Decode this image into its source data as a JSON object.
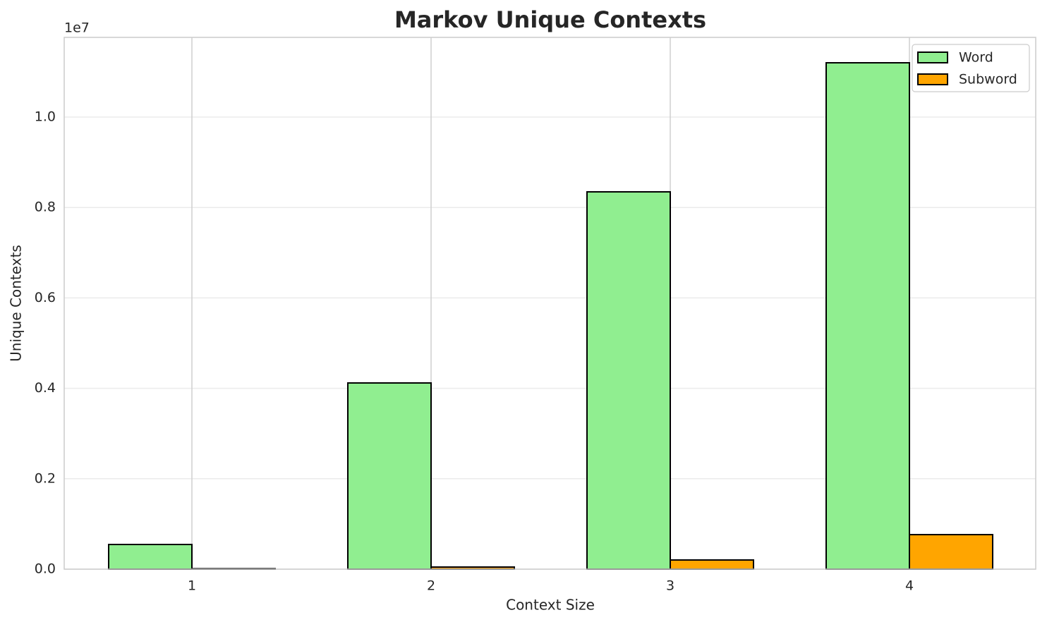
{
  "chart_data": {
    "type": "bar",
    "title": "Markov Unique Contexts",
    "x_label": "Context Size",
    "y_label": "Unique Contexts",
    "y_offset_label": "1e7",
    "categories": [
      "1",
      "2",
      "3",
      "4"
    ],
    "series": [
      {
        "name": "Word",
        "color": "#90ee90",
        "values": [
          546000,
          4119000,
          8346000,
          11201000
        ]
      },
      {
        "name": "Subword",
        "color": "#ffa500",
        "values": [
          10000,
          47000,
          203000,
          764000
        ]
      }
    ],
    "ylim": [
      0,
      11763000
    ],
    "yticks": [
      {
        "value": 0,
        "label": "0.0"
      },
      {
        "value": 2000000,
        "label": "0.2"
      },
      {
        "value": 4000000,
        "label": "0.4"
      },
      {
        "value": 6000000,
        "label": "0.6"
      },
      {
        "value": 8000000,
        "label": "0.8"
      },
      {
        "value": 10000000,
        "label": "1.0"
      }
    ],
    "grid": true,
    "legend": "upper right"
  }
}
